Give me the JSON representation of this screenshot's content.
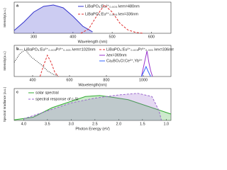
{
  "chart_data": [
    {
      "type": "line",
      "label": "a",
      "xlabel": "Wavelength (nm)",
      "ylabel": "Intensity(a.u.)",
      "xlim": [
        250,
        650
      ],
      "xticks": [
        300,
        400,
        500,
        600
      ],
      "ylim": [
        0,
        1.1
      ],
      "series": [
        {
          "name": "LiBaPO₄:Eu²⁺₀.₀₀₅ λem=480nm",
          "color": "#3333cc",
          "dash": "solid",
          "fill": true,
          "x": [
            250,
            275,
            300,
            325,
            350,
            375,
            400,
            425,
            450
          ],
          "values": [
            0.1,
            0.4,
            0.75,
            0.95,
            1.0,
            0.9,
            0.6,
            0.25,
            0.05
          ]
        },
        {
          "name": "LiBaPO₄:Eu²⁺₀.₀₀₅ λex=336nm",
          "color": "#e03030",
          "dash": "dashed",
          "fill": false,
          "x": [
            420,
            440,
            460,
            480,
            500,
            520,
            540,
            560,
            580
          ],
          "values": [
            0,
            0.15,
            0.6,
            1.0,
            0.75,
            0.35,
            0.12,
            0.03,
            0
          ]
        }
      ]
    },
    {
      "type": "line",
      "label": "b",
      "xlabel": "Wavelength(nm)",
      "ylabel": "Intensity(a.u.)",
      "xlim": [
        300,
        1150
      ],
      "xticks": [
        400,
        600,
        800,
        1000
      ],
      "ylim": [
        0,
        1.1
      ],
      "series": [
        {
          "name": "LiBaPO₄:Eu²⁺₀.₀₀₅Pr³⁺₀.₀₀₅ λem=1020nm",
          "color": "#222222",
          "dash": "dotted",
          "fill": false,
          "x": [
            300,
            330,
            360,
            390,
            420,
            450,
            480,
            510,
            540
          ],
          "values": [
            0.5,
            0.8,
            0.95,
            0.7,
            0.55,
            0.4,
            0.2,
            0.08,
            0.02
          ]
        },
        {
          "name": "LiBaPO₄:Eu²⁺₀.₀₀₅Pr³⁺₀.₀₀₅ λex=336nm",
          "color": "#e03030",
          "dash": "dashed",
          "fill": false,
          "x": [
            440,
            460,
            480,
            500,
            520,
            540
          ],
          "values": [
            0,
            0.4,
            0.75,
            0.5,
            0.15,
            0
          ]
        },
        {
          "name": "λex=369nm",
          "color": "#9933cc",
          "dash": "solid",
          "fill": false,
          "x": [
            990,
            1000,
            1010,
            1020,
            1030,
            1040,
            1050
          ],
          "values": [
            0,
            0.3,
            0.6,
            0.9,
            0.5,
            0.2,
            0
          ]
        },
        {
          "name": "Ca₂BO₃Cl:Ce³⁺,Yb³⁺",
          "color": "#3366ff",
          "dash": "solid",
          "fill": false,
          "x": [
            990,
            1005,
            1015,
            1025,
            1040
          ],
          "values": [
            0,
            0.2,
            0.35,
            0.2,
            0
          ]
        }
      ]
    },
    {
      "type": "line",
      "label": "c",
      "xlabel": "Photon Energy (eV)",
      "ylabel": "Spectral Irradiance (a.u.)",
      "xlim": [
        4.2,
        0.9
      ],
      "xticks": [
        {
          "value": 4,
          "label": "4.0"
        },
        3.5,
        {
          "value": 3,
          "label": "3.0"
        },
        2.5,
        {
          "value": 2,
          "label": "2.0"
        },
        1.5,
        {
          "value": 1,
          "label": "1.0"
        }
      ],
      "ylim": [
        0,
        1
      ],
      "series": [
        {
          "name": "solar spectral",
          "color": "#33aa33",
          "dash": "solid",
          "fill": true,
          "x": [
            4.2,
            3.8,
            3.4,
            3.0,
            2.7,
            2.4,
            2.1,
            1.8,
            1.5,
            1.3,
            1.1,
            0.9
          ],
          "values": [
            0.02,
            0.1,
            0.4,
            0.6,
            0.75,
            0.78,
            0.72,
            0.65,
            0.5,
            0.4,
            0.3,
            0.2
          ]
        },
        {
          "name": "spectral response of c-Si",
          "color": "#9966cc",
          "dash": "dashed",
          "fill": true,
          "x": [
            4.0,
            3.5,
            3.0,
            2.5,
            2.0,
            1.6,
            1.3,
            1.15,
            1.1
          ],
          "values": [
            0.05,
            0.3,
            0.55,
            0.7,
            0.8,
            0.85,
            0.75,
            0.3,
            0
          ]
        }
      ]
    }
  ]
}
